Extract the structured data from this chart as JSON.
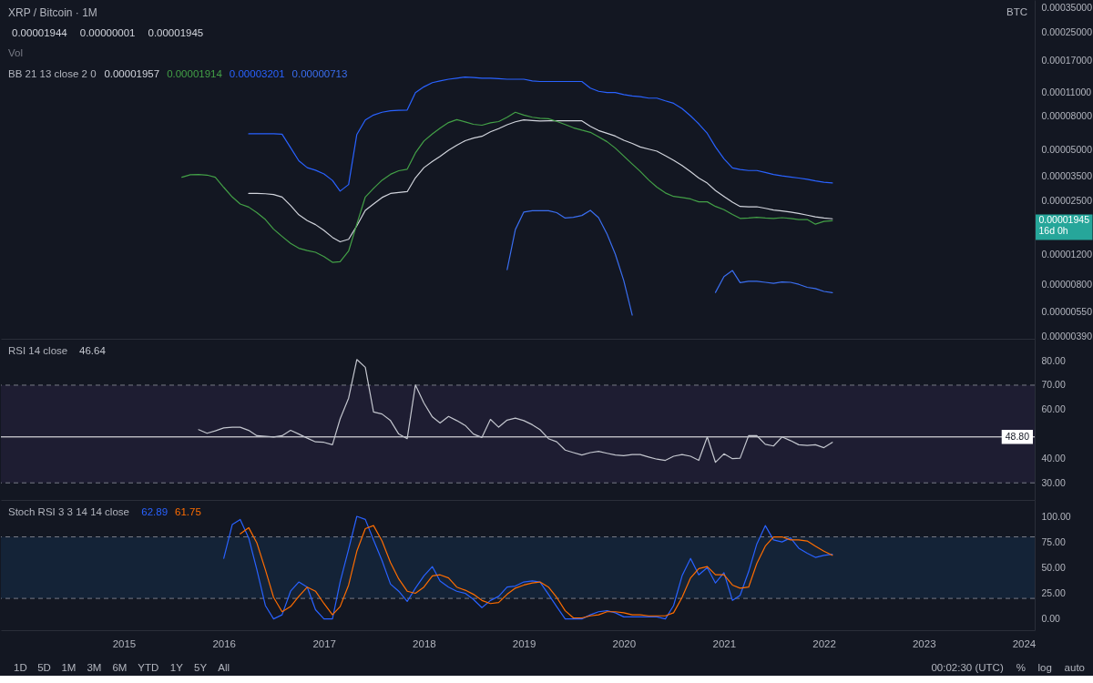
{
  "chart_data": [
    {
      "type": "line",
      "title": "XRP / Bitcoin · 1M",
      "legend_title": "BB 21 13 close 2 0",
      "legend": "top left",
      "log": true,
      "tick_labels": "y",
      "annotations": [
        "0.00001944",
        "0.00000001",
        "0.00001945",
        "Vol",
        "BTC",
        "0.00001945\n16d 0h"
      ],
      "xlim": [
        "2013-10-09",
        "2024-02-10"
      ],
      "ylim": [
        3.8e-06,
        0.00039
      ],
      "yticks": [
        {
          "value": 3.9e-06,
          "label": "0.00000390"
        },
        {
          "value": 5.5e-06,
          "label": "0.00000550"
        },
        {
          "value": 8e-06,
          "label": "0.00000800"
        },
        {
          "value": 1.2e-05,
          "label": "0.00001200"
        },
        {
          "value": 2.5e-05,
          "label": "0.00002500"
        },
        {
          "value": 3.5e-05,
          "label": "0.00003500"
        },
        {
          "value": 5e-05,
          "label": "0.00005000"
        },
        {
          "value": 8e-05,
          "label": "0.00008000"
        },
        {
          "value": 0.00011,
          "label": "0.00011000"
        },
        {
          "value": 0.00017,
          "label": "0.00017000"
        },
        {
          "value": 0.00025,
          "label": "0.00025000"
        },
        {
          "value": 0.00035,
          "label": "0.00035000"
        }
      ],
      "x": [
        "2015-08",
        "2015-09",
        "2015-10",
        "2015-11",
        "2015-12",
        "2016-01",
        "2016-02",
        "2016-03",
        "2016-04",
        "2016-05",
        "2016-06",
        "2016-07",
        "2016-08",
        "2016-09",
        "2016-10",
        "2016-11",
        "2016-12",
        "2017-01",
        "2017-02",
        "2017-03",
        "2017-04",
        "2017-05",
        "2017-06",
        "2017-07",
        "2017-08",
        "2017-09",
        "2017-10",
        "2017-11",
        "2017-12",
        "2018-01",
        "2018-02",
        "2018-03",
        "2018-04",
        "2018-05",
        "2018-06",
        "2018-07",
        "2018-08",
        "2018-09",
        "2018-10",
        "2018-11",
        "2018-12",
        "2019-01",
        "2019-02",
        "2019-03",
        "2019-04",
        "2019-05",
        "2019-06",
        "2019-07",
        "2019-08",
        "2019-09",
        "2019-10",
        "2019-11",
        "2019-12",
        "2020-01",
        "2020-02",
        "2020-03",
        "2020-04",
        "2020-05",
        "2020-06",
        "2020-07",
        "2020-08",
        "2020-09",
        "2020-10",
        "2020-11",
        "2020-12",
        "2021-01",
        "2021-02",
        "2021-03",
        "2021-04",
        "2021-05",
        "2021-06",
        "2021-07",
        "2021-08",
        "2021-09",
        "2021-10",
        "2021-11",
        "2021-12",
        "2022-01",
        "2022-02"
      ],
      "series": [
        {
          "name": "0.00001957",
          "color": "#d1d4dc",
          "values": [
            null,
            null,
            null,
            null,
            null,
            null,
            null,
            null,
            2.77e-05,
            2.77e-05,
            2.76e-05,
            2.73e-05,
            2.64e-05,
            2.35e-05,
            2.07e-05,
            1.91e-05,
            1.81e-05,
            1.67e-05,
            1.52e-05,
            1.43e-05,
            1.48e-05,
            1.78e-05,
            2.2e-05,
            2.4e-05,
            2.62e-05,
            2.77e-05,
            2.81e-05,
            2.84e-05,
            3.43e-05,
            3.94e-05,
            4.29e-05,
            4.6e-05,
            5e-05,
            5.36e-05,
            5.7e-05,
            5.91e-05,
            6.05e-05,
            6.43e-05,
            6.72e-05,
            7.09e-05,
            7.38e-05,
            7.57e-05,
            7.5e-05,
            7.45e-05,
            7.48e-05,
            7.48e-05,
            7.48e-05,
            7.48e-05,
            7.48e-05,
            6.93e-05,
            6.55e-05,
            6.3e-05,
            6.07e-05,
            5.73e-05,
            5.49e-05,
            5.23e-05,
            5.08e-05,
            4.94e-05,
            4.64e-05,
            4.36e-05,
            4.06e-05,
            3.73e-05,
            3.42e-05,
            3.19e-05,
            2.88e-05,
            2.66e-05,
            2.46e-05,
            2.32e-05,
            2.31e-05,
            2.31e-05,
            2.26e-05,
            2.21e-05,
            2.18e-05,
            2.15e-05,
            2.11e-05,
            2.06e-05,
            2.01e-05,
            1.98e-05,
            1.96e-05
          ]
        },
        {
          "name": "0.00001914",
          "color": "#43a047",
          "values": [
            3.46e-05,
            3.58e-05,
            3.59e-05,
            3.56e-05,
            3.46e-05,
            3.01e-05,
            2.64e-05,
            2.4e-05,
            2.3e-05,
            2.13e-05,
            1.94e-05,
            1.7e-05,
            1.54e-05,
            1.4e-05,
            1.31e-05,
            1.27e-05,
            1.24e-05,
            1.17e-05,
            1.08e-05,
            1.09e-05,
            1.26e-05,
            1.82e-05,
            2.64e-05,
            2.97e-05,
            3.32e-05,
            3.6e-05,
            3.78e-05,
            3.86e-05,
            4.82e-05,
            5.67e-05,
            6.26e-05,
            6.76e-05,
            7.3e-05,
            7.6e-05,
            7.36e-05,
            7.13e-05,
            7.04e-05,
            7.27e-05,
            7.4e-05,
            7.85e-05,
            8.41e-05,
            8.09e-05,
            7.85e-05,
            7.75e-05,
            7.7e-05,
            7.42e-05,
            7.11e-05,
            6.8e-05,
            6.58e-05,
            6.39e-05,
            6.01e-05,
            5.62e-05,
            5.15e-05,
            4.62e-05,
            4.14e-05,
            3.75e-05,
            3.33e-05,
            3.02e-05,
            2.79e-05,
            2.66e-05,
            2.62e-05,
            2.57e-05,
            2.47e-05,
            2.47e-05,
            2.32e-05,
            2.22e-05,
            2.08e-05,
            1.97e-05,
            1.98e-05,
            2e-05,
            1.98e-05,
            1.97e-05,
            1.99e-05,
            1.97e-05,
            1.94e-05,
            1.94e-05,
            1.82e-05,
            1.89e-05,
            1.91e-05
          ]
        },
        {
          "name": "0.00003201",
          "color": "#2962ff",
          "values": [
            null,
            null,
            null,
            null,
            null,
            null,
            null,
            null,
            6.26e-05,
            6.26e-05,
            6.26e-05,
            6.26e-05,
            6.23e-05,
            5.18e-05,
            4.33e-05,
            3.94e-05,
            3.81e-05,
            3.62e-05,
            3.31e-05,
            2.86e-05,
            3.13e-05,
            6.2e-05,
            7.57e-05,
            8.09e-05,
            8.41e-05,
            8.58e-05,
            8.63e-05,
            8.67e-05,
            0.00011,
            0.000119,
            0.000126,
            0.000129,
            0.000132,
            0.000134,
            0.000136,
            0.000135,
            0.000134,
            0.000134,
            0.000133,
            0.000132,
            0.000132,
            0.000132,
            0.000129,
            0.000128,
            0.000128,
            0.000128,
            0.000128,
            0.000128,
            0.000128,
            0.000117,
            0.000112,
            0.00011,
            0.00011,
            0.000107,
            0.000105,
            0.000104,
            0.000102,
            0.000102,
            9.82e-05,
            9.5e-05,
            8.84e-05,
            8e-05,
            7.17e-05,
            6.3e-05,
            5.23e-05,
            4.45e-05,
            3.93e-05,
            3.84e-05,
            3.79e-05,
            3.79e-05,
            3.69e-05,
            3.59e-05,
            3.52e-05,
            3.47e-05,
            3.42e-05,
            3.36e-05,
            3.29e-05,
            3.23e-05,
            3.2e-05
          ]
        },
        {
          "name": "0.00000713",
          "color": "#3a6ef0",
          "values": [
            null,
            null,
            null,
            null,
            null,
            null,
            null,
            null,
            null,
            null,
            null,
            null,
            null,
            null,
            null,
            null,
            null,
            null,
            null,
            null,
            null,
            null,
            null,
            null,
            null,
            null,
            null,
            null,
            null,
            null,
            null,
            null,
            null,
            null,
            null,
            null,
            null,
            null,
            null,
            9.77e-06,
            1.69e-05,
            2.15e-05,
            2.19e-05,
            2.19e-05,
            2.19e-05,
            2.13e-05,
            1.98e-05,
            2e-05,
            2.05e-05,
            2.2e-05,
            1.99e-05,
            1.59e-05,
            1.21e-05,
            8.41e-06,
            5.25e-06,
            null,
            null,
            null,
            null,
            null,
            null,
            null,
            null,
            null,
            7.16e-06,
            8.88e-06,
            9.66e-06,
            8.18e-06,
            8.33e-06,
            8.33e-06,
            8.22e-06,
            8.1e-06,
            8.26e-06,
            8.22e-06,
            8e-06,
            7.68e-06,
            7.55e-06,
            7.26e-06,
            7.13e-06
          ]
        }
      ]
    },
    {
      "type": "line",
      "legend_title": "RSI 14 close",
      "legend": "top left",
      "tick_labels": "y",
      "xlim": [
        "2013-10-09",
        "2024-02-10"
      ],
      "ylim": [
        23,
        89
      ],
      "yticks": [
        {
          "value": 30,
          "label": "30.00"
        },
        {
          "value": 40,
          "label": "40.00"
        },
        {
          "value": 60,
          "label": "60.00"
        },
        {
          "value": 70,
          "label": "70.00"
        },
        {
          "value": 80,
          "label": "80.00"
        }
      ],
      "bands": [
        {
          "axis": "y",
          "from": 30,
          "to": 70,
          "color": "#7e57c2"
        }
      ],
      "ref_lines": [
        {
          "axis": "y",
          "value": 70,
          "line_style": "dashed",
          "color": "#787b86"
        },
        {
          "axis": "y",
          "value": 30,
          "line_style": "dashed",
          "color": "#787b86"
        },
        {
          "axis": "y",
          "value": 48.8,
          "label": "48.80",
          "color": "#ffffff"
        }
      ],
      "x": [
        "2015-10",
        "2015-11",
        "2015-12",
        "2016-01",
        "2016-02",
        "2016-03",
        "2016-04",
        "2016-05",
        "2016-06",
        "2016-07",
        "2016-08",
        "2016-09",
        "2016-10",
        "2016-11",
        "2016-12",
        "2017-01",
        "2017-02",
        "2017-03",
        "2017-04",
        "2017-05",
        "2017-06",
        "2017-07",
        "2017-08",
        "2017-09",
        "2017-10",
        "2017-11",
        "2017-12",
        "2018-01",
        "2018-02",
        "2018-03",
        "2018-04",
        "2018-05",
        "2018-06",
        "2018-07",
        "2018-08",
        "2018-09",
        "2018-10",
        "2018-11",
        "2018-12",
        "2019-01",
        "2019-02",
        "2019-03",
        "2019-04",
        "2019-05",
        "2019-06",
        "2019-07",
        "2019-08",
        "2019-09",
        "2019-10",
        "2019-11",
        "2019-12",
        "2020-01",
        "2020-02",
        "2020-03",
        "2020-04",
        "2020-05",
        "2020-06",
        "2020-07",
        "2020-08",
        "2020-09",
        "2020-10",
        "2020-11",
        "2020-12",
        "2021-01",
        "2021-02",
        "2021-03",
        "2021-04",
        "2021-05",
        "2021-06",
        "2021-07",
        "2021-08",
        "2021-09",
        "2021-10",
        "2021-11",
        "2021-12",
        "2022-01",
        "2022-02"
      ],
      "series": [
        {
          "name": "46.64",
          "color": "#c3c6ce",
          "values": [
            51.8,
            50.3,
            51.3,
            52.5,
            52.8,
            52.8,
            51.5,
            49.3,
            49.1,
            48.8,
            49.3,
            51.5,
            50.0,
            48.3,
            46.8,
            46.6,
            45.6,
            56.2,
            64.7,
            80.5,
            77.3,
            59.0,
            58.2,
            55.5,
            50.0,
            48.1,
            70.1,
            62.7,
            57.0,
            54.5,
            57.2,
            55.5,
            53.5,
            50.0,
            48.6,
            56.0,
            52.8,
            55.7,
            56.5,
            55.5,
            53.8,
            51.8,
            48.1,
            46.8,
            43.4,
            42.4,
            41.4,
            42.4,
            42.9,
            42.1,
            41.4,
            41.1,
            41.6,
            41.6,
            40.6,
            39.7,
            39.2,
            40.9,
            41.6,
            40.9,
            39.2,
            48.8,
            38.4,
            41.9,
            39.9,
            40.1,
            49.3,
            49.3,
            45.8,
            45.1,
            48.8,
            47.3,
            45.6,
            45.3,
            45.6,
            44.4,
            46.6
          ]
        }
      ]
    },
    {
      "type": "line",
      "legend_title": "Stoch RSI 3 3 14 14 close",
      "legend": "top left",
      "annotations": [
        "1D",
        "5D",
        "1M",
        "3M",
        "6M",
        "YTD",
        "1Y",
        "5Y",
        "All",
        "00:02:30 (UTC)",
        "%",
        "log",
        "auto"
      ],
      "xlim": [
        "2013-10-09",
        "2024-02-10"
      ],
      "xticks": [
        "2015",
        "2016",
        "2017",
        "2018",
        "2019",
        "2020",
        "2021",
        "2022",
        "2023",
        "2024"
      ],
      "ylim": [
        -11,
        116
      ],
      "yticks": [
        {
          "value": 0,
          "label": "0.00"
        },
        {
          "value": 25,
          "label": "25.00"
        },
        {
          "value": 50,
          "label": "50.00"
        },
        {
          "value": 75,
          "label": "75.00"
        },
        {
          "value": 100,
          "label": "100.00"
        }
      ],
      "bands": [
        {
          "axis": "y",
          "from": 20,
          "to": 80,
          "color": "#2196f3"
        }
      ],
      "ref_lines": [
        {
          "axis": "y",
          "value": 80,
          "line_style": "dashed",
          "color": "#787b86"
        },
        {
          "axis": "y",
          "value": 20,
          "line_style": "dashed",
          "color": "#787b86"
        }
      ],
      "x": [
        "2016-01",
        "2016-02",
        "2016-03",
        "2016-04",
        "2016-05",
        "2016-06",
        "2016-07",
        "2016-08",
        "2016-09",
        "2016-10",
        "2016-11",
        "2016-12",
        "2017-01",
        "2017-02",
        "2017-03",
        "2017-04",
        "2017-05",
        "2017-06",
        "2017-07",
        "2017-08",
        "2017-09",
        "2017-10",
        "2017-11",
        "2017-12",
        "2018-01",
        "2018-02",
        "2018-03",
        "2018-04",
        "2018-05",
        "2018-06",
        "2018-07",
        "2018-08",
        "2018-09",
        "2018-10",
        "2018-11",
        "2018-12",
        "2019-01",
        "2019-02",
        "2019-03",
        "2019-04",
        "2019-05",
        "2019-06",
        "2019-07",
        "2019-08",
        "2019-09",
        "2019-10",
        "2019-11",
        "2019-12",
        "2020-01",
        "2020-02",
        "2020-03",
        "2020-04",
        "2020-05",
        "2020-06",
        "2020-07",
        "2020-08",
        "2020-09",
        "2020-10",
        "2020-11",
        "2020-12",
        "2021-01",
        "2021-02",
        "2021-03",
        "2021-04",
        "2021-05",
        "2021-06",
        "2021-07",
        "2021-08",
        "2021-09",
        "2021-10",
        "2021-11",
        "2021-12",
        "2022-01",
        "2022-02"
      ],
      "series": [
        {
          "name": "62.89",
          "color": "#2962ff",
          "values": [
            59,
            92,
            97,
            79,
            48,
            13,
            0,
            4,
            27,
            36,
            31,
            9,
            0,
            0,
            36,
            68,
            100,
            97,
            77,
            57,
            34,
            27,
            17,
            30,
            42,
            51,
            37,
            31,
            27,
            25,
            19,
            11,
            18,
            22,
            31,
            32,
            36,
            37,
            36,
            24,
            12,
            0,
            0,
            0,
            4,
            7,
            8,
            6,
            2,
            2,
            2,
            2,
            2,
            0,
            13,
            42,
            59,
            43,
            50,
            35,
            45,
            18,
            23,
            46,
            73,
            91,
            77,
            75,
            79,
            69,
            64,
            60,
            62,
            63
          ]
        },
        {
          "name": "61.75",
          "color": "#ff6d00",
          "values": [
            null,
            null,
            83,
            89,
            74,
            48,
            21,
            7,
            12,
            22,
            31,
            27,
            15,
            4,
            12,
            33,
            66,
            88,
            91,
            76,
            55,
            39,
            27,
            25,
            31,
            42,
            43,
            40,
            31,
            28,
            24,
            18,
            15,
            16,
            24,
            30,
            33,
            35,
            36,
            31,
            21,
            8,
            1,
            1,
            3,
            4,
            7,
            7,
            6,
            4,
            4,
            3,
            3,
            3,
            6,
            21,
            40,
            49,
            51,
            43,
            43,
            33,
            30,
            31,
            54,
            71,
            80,
            80,
            77,
            77,
            76,
            71,
            66,
            62
          ]
        }
      ]
    }
  ]
}
